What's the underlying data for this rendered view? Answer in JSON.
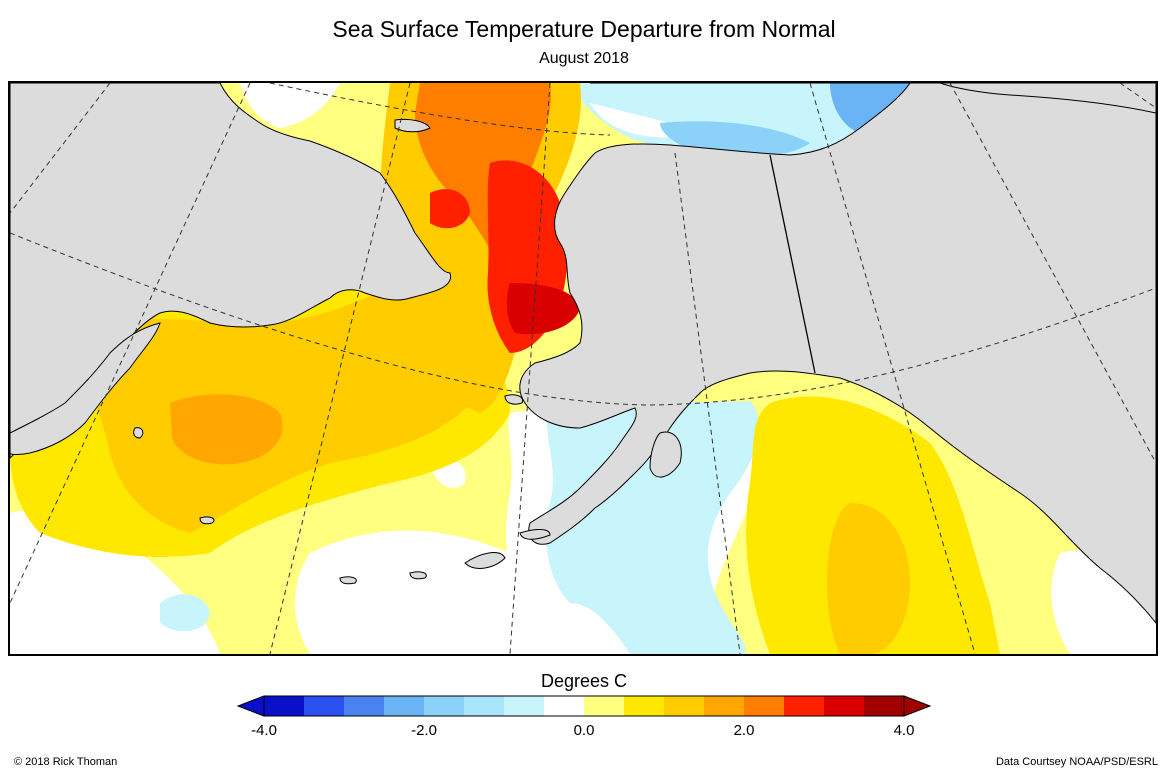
{
  "title": "Sea Surface Temperature Departure from Normal",
  "subtitle": "August 2018",
  "legend": {
    "title": "Degrees C",
    "min": -4.0,
    "max": 4.0,
    "tick_labels": [
      "-4.0",
      "-2.0",
      "0.0",
      "2.0",
      "4.0"
    ],
    "tick_values": [
      -4.0,
      -2.0,
      0.0,
      2.0,
      4.0
    ],
    "colors": [
      "#0a10c8",
      "#2a50f0",
      "#4a82f0",
      "#6ab4f5",
      "#8cd2f8",
      "#a8e4fa",
      "#c8f4fc",
      "#ffffff",
      "#ffff80",
      "#ffe800",
      "#ffcc00",
      "#ffa600",
      "#ff7e00",
      "#ff2000",
      "#d80000",
      "#a00000"
    ],
    "arrow_low_color": "#0a10c8",
    "arrow_high_color": "#a00000"
  },
  "map": {
    "land_color": "#dcdcdc",
    "coast_color": "#000000",
    "graticule_color": "#333333",
    "anomaly_palette": {
      "ocean_base": "#ffff80",
      "neutral": "#ffffff",
      "cool_light": "#c8f4fc",
      "cool": "#8cd2f8",
      "cool_strong": "#6ab4f5",
      "warm_light": "#ffe800",
      "warm": "#ffcc00",
      "warm_mid": "#ffa600",
      "warm_strong": "#ff7e00",
      "hot": "#ff2000",
      "hottest": "#d80000"
    }
  },
  "credits": {
    "left": "© 2018 Rick Thoman",
    "right": "Data Courtsey NOAA/PSD/ESRL"
  }
}
